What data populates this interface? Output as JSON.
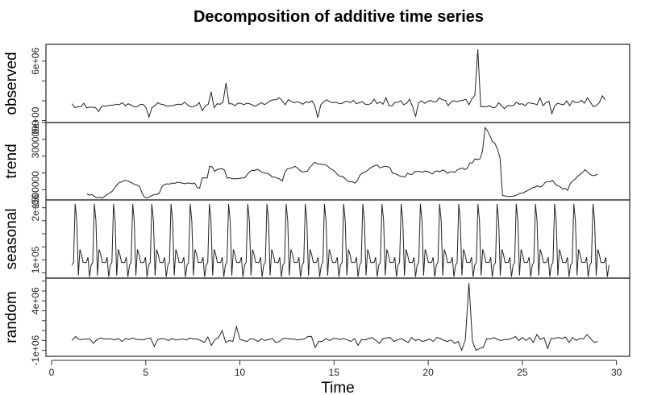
{
  "chart_data": {
    "type": "line",
    "title": "Decomposition of additive time series",
    "xlabel": "Time",
    "x_ticks": [
      0,
      5,
      10,
      15,
      20,
      25,
      30
    ],
    "xlim": [
      0,
      30
    ],
    "frequency": 12,
    "start": 1.08,
    "panels": [
      {
        "name": "observed",
        "ylabel": "observed",
        "y_tick_labels": [
          "0e+00",
          "6e+06"
        ],
        "ylim": [
          -200000,
          7700000
        ],
        "values": [
          1700000,
          1300000,
          1400000,
          1400000,
          1750000,
          1300000,
          1350000,
          1350000,
          1300000,
          900000,
          1450000,
          1450000,
          1500000,
          1550000,
          1550000,
          1650000,
          1600000,
          1800000,
          1500000,
          1700000,
          1550000,
          1400000,
          1400000,
          1600000,
          1650000,
          1300000,
          350000,
          1300000,
          1500000,
          1800000,
          1650000,
          1600000,
          1450000,
          1500000,
          1500000,
          1600000,
          1650000,
          1600000,
          1850000,
          1600000,
          1400000,
          1400000,
          1550000,
          1800000,
          1000000,
          1450000,
          1650000,
          2900000,
          1300000,
          1700000,
          1650000,
          1850000,
          3800000,
          1700000,
          1700000,
          1500000,
          1750000,
          1750000,
          1600000,
          1750000,
          1700000,
          1550000,
          1450000,
          1650000,
          1800000,
          1600000,
          1800000,
          2000000,
          2100000,
          2100000,
          2300000,
          2000000,
          1600000,
          2100000,
          1950000,
          1800000,
          1900000,
          1800000,
          1650000,
          1900000,
          1800000,
          2000000,
          1500000,
          300000,
          1600000,
          1900000,
          2100000,
          1900000,
          1800000,
          1850000,
          1750000,
          1700000,
          1900000,
          1950000,
          1800000,
          2050000,
          1700000,
          1800000,
          1900000,
          1650000,
          1600000,
          1750000,
          2150000,
          1700000,
          1900000,
          1650000,
          2300000,
          1500000,
          1500000,
          1800000,
          1850000,
          2000000,
          1600000,
          1750000,
          2150000,
          1400000,
          400000,
          1800000,
          2000000,
          1750000,
          1900000,
          2050000,
          1900000,
          1900000,
          2300000,
          2100000,
          2050000,
          1500000,
          1900000,
          2000000,
          1900000,
          2000000,
          2050000,
          2150000,
          1600000,
          2200000,
          2550000,
          7200000,
          1400000,
          1400000,
          1400000,
          1500000,
          1300000,
          1350000,
          1800000,
          1500000,
          1200000,
          1500000,
          1500000,
          1500000,
          1850000,
          1650000,
          1700000,
          1500000,
          1800000,
          1750000,
          1700000,
          1600000,
          2300000,
          1500000,
          1800000,
          1950000,
          700000,
          1500000,
          1750000,
          1650000,
          1600000,
          2000000,
          1500000,
          2000000,
          1800000,
          1850000,
          2050000,
          1750000,
          2300000,
          1850000,
          1400000,
          1500000,
          1800000,
          2500000,
          2100000
        ]
      },
      {
        "name": "trend",
        "ylabel": "trend",
        "y_tick_labels": [
          "1500000",
          "3000000"
        ],
        "ylim": [
          1200000,
          3500000
        ],
        "values": [
          null,
          null,
          null,
          null,
          null,
          null,
          1380000,
          1340000,
          1360000,
          1300000,
          1260000,
          1280000,
          1250000,
          1300000,
          1360000,
          1400000,
          1450000,
          1550000,
          1650000,
          1720000,
          1740000,
          1780000,
          1770000,
          1740000,
          1700000,
          1660000,
          1640000,
          1600000,
          1400000,
          1280000,
          1260000,
          1290000,
          1330000,
          1360000,
          1360000,
          1420000,
          1600000,
          1660000,
          1680000,
          1670000,
          1700000,
          1690000,
          1720000,
          1720000,
          1700000,
          1680000,
          1700000,
          1700000,
          1680000,
          1700000,
          1570000,
          1550000,
          1850000,
          1860000,
          1850000,
          2200000,
          2180000,
          2050000,
          2100000,
          2120000,
          2130000,
          2080000,
          1850000,
          1860000,
          1830000,
          1830000,
          1830000,
          1840000,
          1850000,
          1860000,
          1950000,
          2040000,
          2080000,
          2070000,
          2110000,
          2070000,
          2020000,
          2000000,
          1990000,
          1950000,
          1880000,
          1880000,
          1850000,
          1820000,
          1760000,
          2010000,
          2120000,
          2140000,
          2160000,
          2200000,
          2150000,
          2080000,
          2030000,
          2040000,
          2050000,
          2170000,
          2240000,
          2320000,
          2270000,
          2270000,
          2250000,
          2250000,
          2210000,
          2140000,
          2100000,
          2040000,
          1960000,
          1900000,
          1900000,
          1840000,
          1770000,
          1740000,
          1740000,
          1700000,
          1780000,
          1930000,
          2000000,
          2030000,
          2070000,
          2140000,
          2180000,
          2220000,
          2240000,
          2150000,
          2180000,
          2200000,
          2190000,
          2160000,
          2000000,
          1980000,
          1950000,
          1910000,
          1900000,
          1880000,
          1990000,
          1960000,
          1960000,
          2040000,
          2040000,
          2050000,
          2020000,
          2060000,
          2050000,
          2010000,
          1970000,
          2050000,
          2060000,
          2040000,
          2090000,
          2060000,
          1990000,
          2030000,
          2040000,
          2020000,
          2100000,
          2120000,
          2150000,
          2100000,
          2150000,
          2300000,
          2300000,
          2420000,
          2400000,
          2420000,
          2650000,
          3350000,
          3250000,
          3100000,
          2930000,
          2880000,
          2700000,
          2450000,
          1330000,
          1320000,
          1300000,
          1300000,
          1310000,
          1320000,
          1360000,
          1400000,
          1400000,
          1440000,
          1480000,
          1520000,
          1560000,
          1580000,
          1620000,
          1580000,
          1620000,
          1720000,
          1740000,
          1740000,
          1780000,
          1680000,
          1620000,
          1600000,
          1520000,
          1550000,
          1480000,
          1680000,
          1760000,
          1820000,
          1900000,
          1960000,
          2020000,
          2100000,
          2020000,
          1960000,
          1920000,
          1930000,
          1970000
        ]
      },
      {
        "name": "seasonal",
        "ylabel": "seasonal",
        "y_tick_labels": [
          "1e+05",
          "2e+06"
        ],
        "ylim": [
          -700000,
          2300000
        ],
        "pattern_period_values": [
          -200000,
          -100000,
          2150000,
          1500000,
          -600000,
          400000,
          200000,
          -100000,
          -100000,
          -100000,
          100000,
          -650000
        ],
        "cycles_visible": 28
      },
      {
        "name": "random",
        "ylabel": "random",
        "y_tick_labels": [
          "-1e+06",
          "4e+06"
        ],
        "ylim": [
          -1600000,
          6300000
        ],
        "values": [
          0,
          400000,
          100000,
          100000,
          150000,
          150000,
          -300000,
          100000,
          250000,
          150000,
          150000,
          150000,
          50000,
          200000,
          -100000,
          200000,
          100000,
          250000,
          100000,
          100000,
          50000,
          200000,
          250000,
          -600000,
          100000,
          200000,
          150000,
          0,
          200000,
          50000,
          100000,
          150000,
          50000,
          250000,
          150000,
          150000,
          0,
          -200000,
          350000,
          -500000,
          100000,
          300000,
          1000000,
          -200000,
          0,
          -100000,
          1400000,
          100000,
          0,
          -100000,
          200000,
          100000,
          -100000,
          150000,
          0,
          100000,
          200000,
          -200000,
          -100000,
          200000,
          200000,
          150000,
          150000,
          50000,
          100000,
          150000,
          400000,
          400000,
          -700000,
          -100000,
          -100000,
          200000,
          0,
          200000,
          200000,
          100000,
          200000,
          50000,
          -100000,
          200000,
          -500000,
          100000,
          50000,
          200000,
          300000,
          0,
          -300000,
          200000,
          250000,
          300000,
          -100000,
          50000,
          200000,
          0,
          -200000,
          300000,
          0,
          100000,
          -100000,
          0,
          150000,
          -100000,
          300000,
          200000,
          0,
          -100000,
          50000,
          -300000,
          -100000,
          -1000000,
          100000,
          5800000,
          -100000,
          -1000000,
          -800000,
          -700000,
          200000,
          150000,
          300000,
          100000,
          0,
          100000,
          100000,
          200000,
          400000,
          0,
          300000,
          0,
          300000,
          -200000,
          600000,
          100000,
          300000,
          -800000,
          200000,
          200000,
          300000,
          200000,
          350000,
          -200000,
          300000,
          0,
          200000,
          150000,
          600000,
          200000,
          -200000,
          -100000
        ]
      }
    ]
  }
}
